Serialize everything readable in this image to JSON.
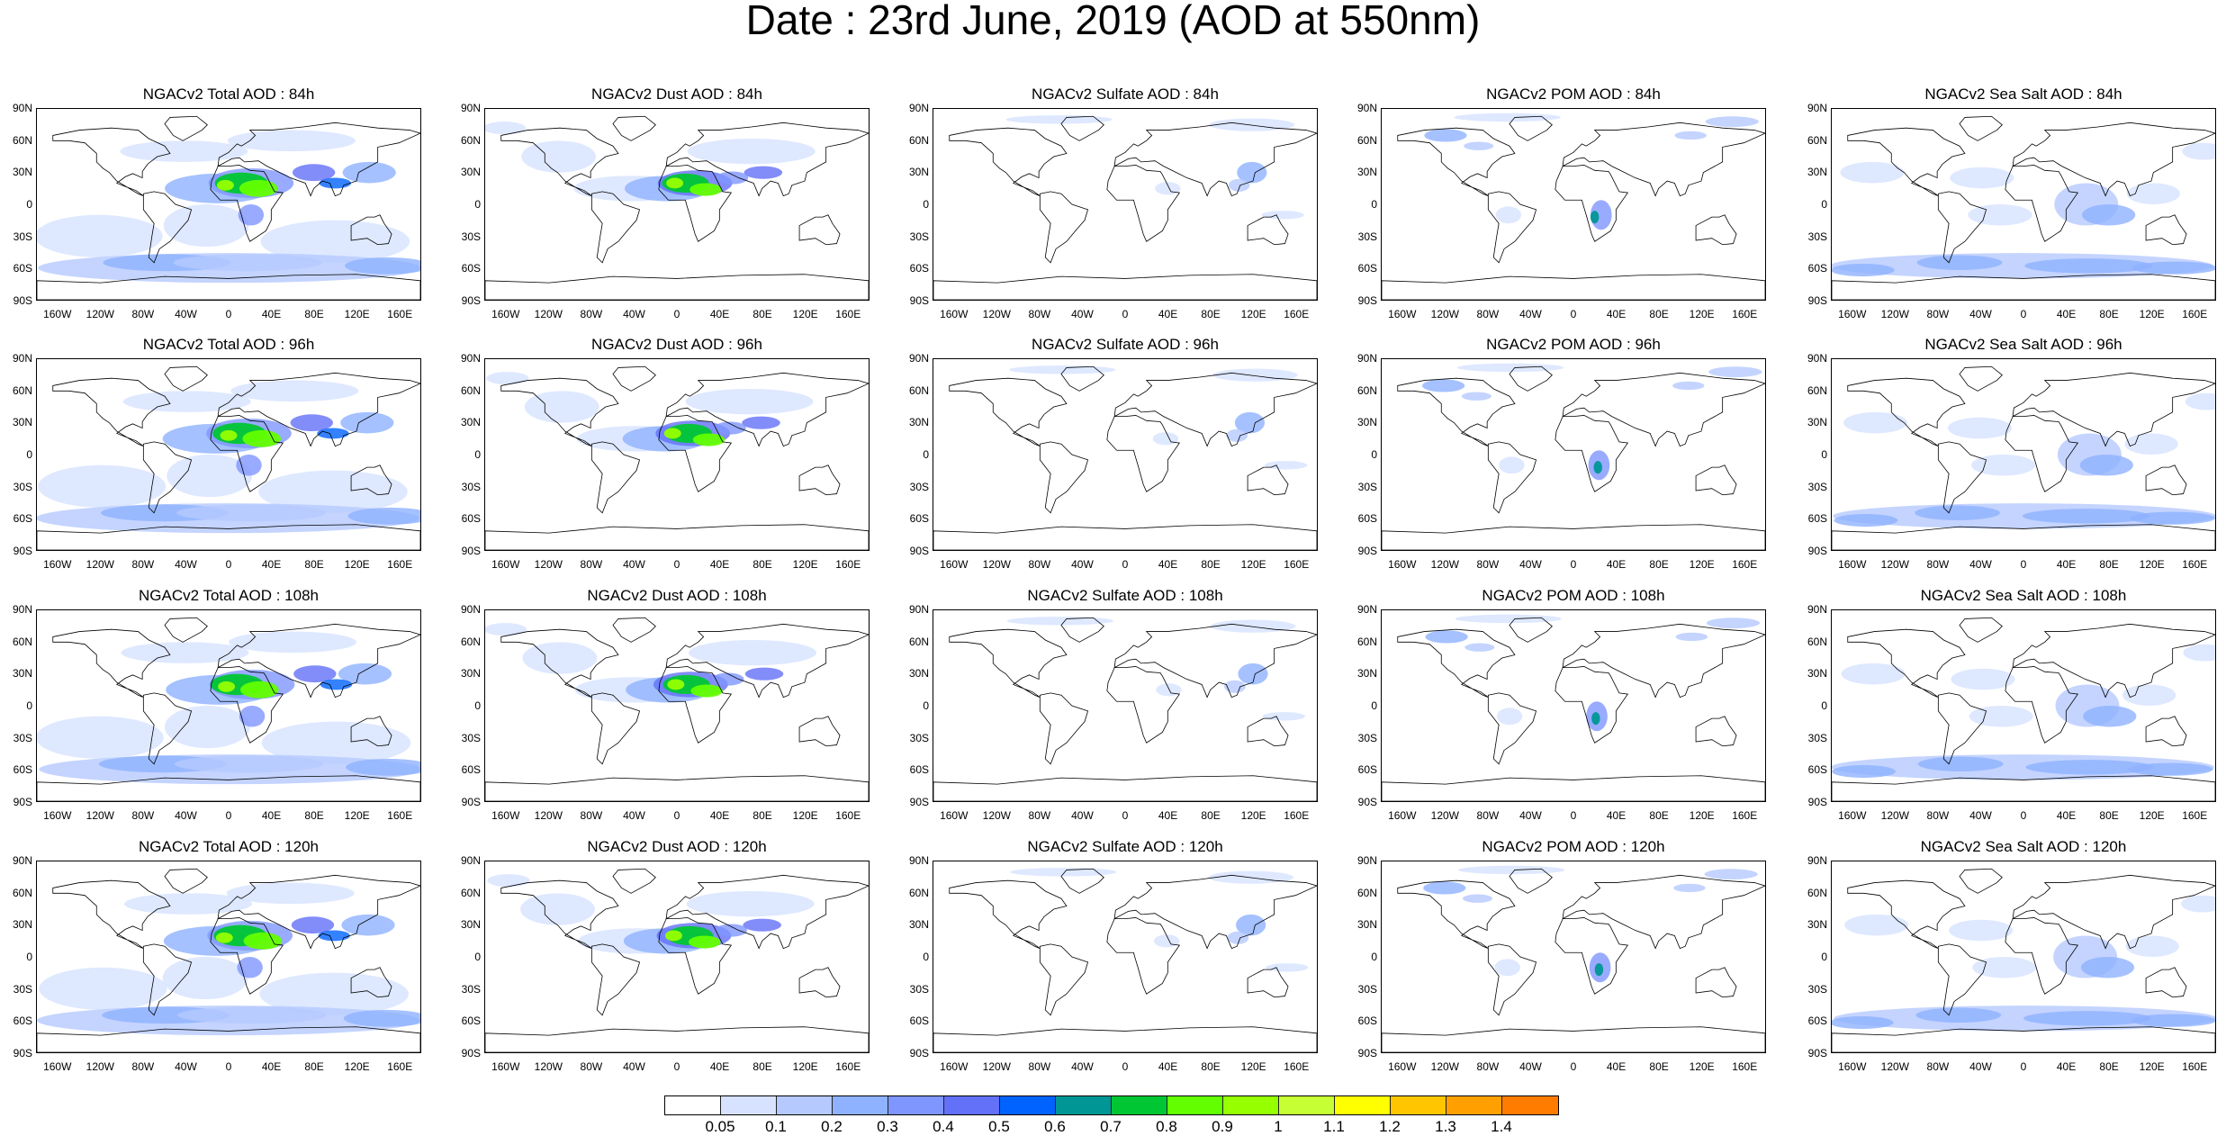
{
  "title": "Date : 23rd June, 2019 (AOD at 550nm)",
  "lat_labels": [
    "90N",
    "60N",
    "30N",
    "0",
    "30S",
    "60S",
    "90S"
  ],
  "lon_labels": [
    "160W",
    "120W",
    "80W",
    "40W",
    "0",
    "40E",
    "80E",
    "120E",
    "160E"
  ],
  "panels": [
    [
      "NGACv2 Total AOD : 84h",
      "NGACv2 Dust AOD : 84h",
      "NGACv2 Sulfate AOD : 84h",
      "NGACv2 POM AOD : 84h",
      "NGACv2 Sea Salt AOD : 84h"
    ],
    [
      "NGACv2 Total AOD : 96h",
      "NGACv2 Dust AOD : 96h",
      "NGACv2 Sulfate AOD : 96h",
      "NGACv2 POM AOD : 96h",
      "NGACv2 Sea Salt AOD : 96h"
    ],
    [
      "NGACv2 Total AOD : 108h",
      "NGACv2 Dust AOD : 108h",
      "NGACv2 Sulfate AOD : 108h",
      "NGACv2 POM AOD : 108h",
      "NGACv2 Sea Salt AOD : 108h"
    ],
    [
      "NGACv2 Total AOD : 120h",
      "NGACv2 Dust AOD : 120h",
      "NGACv2 Sulfate AOD : 120h",
      "NGACv2 POM AOD : 120h",
      "NGACv2 Sea Salt  AOD : 120h"
    ]
  ],
  "colorbar": {
    "labels": [
      "0.05",
      "0.1",
      "0.2",
      "0.3",
      "0.4",
      "0.5",
      "0.6",
      "0.7",
      "0.8",
      "0.9",
      "1",
      "1.1",
      "1.2",
      "1.3",
      "1.4"
    ],
    "colors": [
      "#ffffff",
      "#d6e2ff",
      "#b5c9ff",
      "#8eb2ff",
      "#7f96ff",
      "#6370f8",
      "#0063ff",
      "#009696",
      "#00c633",
      "#63ff00",
      "#96ff00",
      "#c6ff33",
      "#ffff00",
      "#ffc600",
      "#ffa000",
      "#ff7c00",
      "#ff1900"
    ]
  }
}
